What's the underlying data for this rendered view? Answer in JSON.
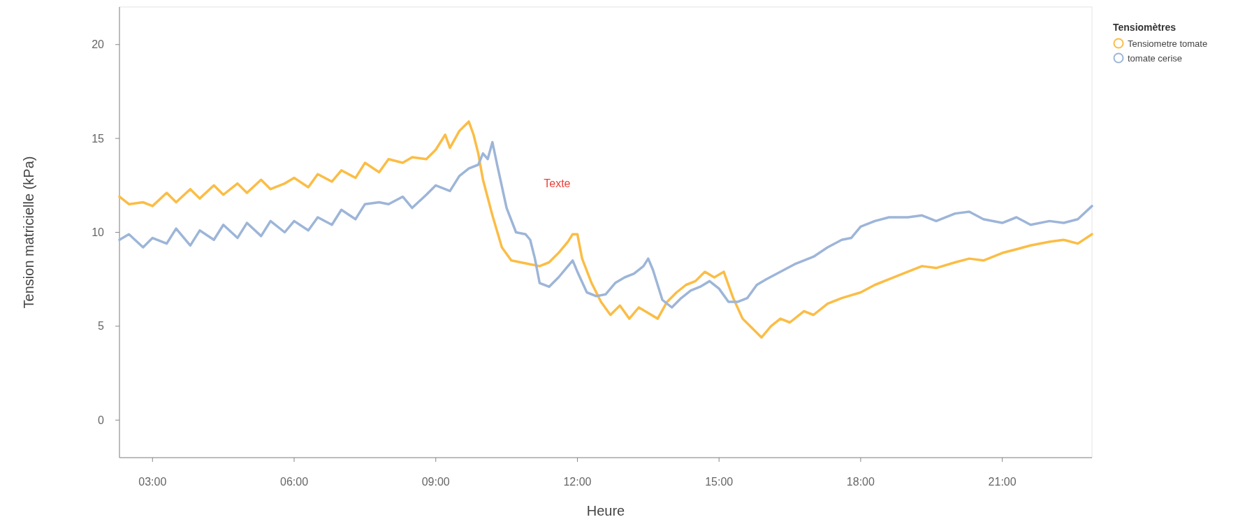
{
  "chart_data": {
    "type": "line",
    "xlabel": "Heure",
    "ylabel": "Tension matricielle (kPa)",
    "legend_title": "Tensiomètres",
    "legend": "top right",
    "marker": "none",
    "line_style": "solid",
    "grid": false,
    "xlim": [
      2.3,
      22.9
    ],
    "xticks": [
      {
        "value": 3,
        "label": "03:00"
      },
      {
        "value": 6,
        "label": "06:00"
      },
      {
        "value": 9,
        "label": "09:00"
      },
      {
        "value": 12,
        "label": "12:00"
      },
      {
        "value": 15,
        "label": "15:00"
      },
      {
        "value": 18,
        "label": "18:00"
      },
      {
        "value": 21,
        "label": "21:00"
      }
    ],
    "ylim": [
      -2,
      22
    ],
    "yticks": [
      0,
      5,
      10,
      15,
      20
    ],
    "annotations": [
      "Texte"
    ],
    "series": [
      {
        "name": "Tensiometre tomate",
        "color": "#fbbd45",
        "x": [
          2.3,
          2.5,
          2.8,
          3.0,
          3.3,
          3.5,
          3.8,
          4.0,
          4.3,
          4.5,
          4.8,
          5.0,
          5.3,
          5.5,
          5.8,
          6.0,
          6.3,
          6.5,
          6.8,
          7.0,
          7.3,
          7.5,
          7.8,
          8.0,
          8.3,
          8.5,
          8.8,
          9.0,
          9.2,
          9.3,
          9.5,
          9.7,
          9.8,
          9.9,
          10.0,
          10.2,
          10.4,
          10.6,
          10.8,
          11.0,
          11.2,
          11.4,
          11.6,
          11.8,
          11.9,
          12.0,
          12.1,
          12.3,
          12.5,
          12.7,
          12.9,
          13.1,
          13.3,
          13.5,
          13.7,
          13.9,
          14.1,
          14.3,
          14.5,
          14.7,
          14.9,
          15.1,
          15.3,
          15.5,
          15.7,
          15.9,
          16.1,
          16.3,
          16.5,
          16.8,
          17.0,
          17.3,
          17.6,
          18.0,
          18.3,
          18.6,
          19.0,
          19.3,
          19.6,
          20.0,
          20.3,
          20.6,
          21.0,
          21.3,
          21.6,
          22.0,
          22.3,
          22.6,
          22.9
        ],
        "values": [
          11.9,
          11.5,
          11.6,
          11.4,
          12.1,
          11.6,
          12.3,
          11.8,
          12.5,
          12.0,
          12.6,
          12.1,
          12.8,
          12.3,
          12.6,
          12.9,
          12.4,
          13.1,
          12.7,
          13.3,
          12.9,
          13.7,
          13.2,
          13.9,
          13.7,
          14.0,
          13.9,
          14.4,
          15.2,
          14.5,
          15.4,
          15.9,
          15.2,
          14.2,
          12.8,
          10.9,
          9.2,
          8.5,
          8.4,
          8.3,
          8.2,
          8.4,
          8.9,
          9.5,
          9.9,
          9.9,
          8.6,
          7.3,
          6.3,
          5.6,
          6.1,
          5.4,
          6.0,
          5.7,
          5.4,
          6.3,
          6.8,
          7.2,
          7.4,
          7.9,
          7.6,
          7.9,
          6.5,
          5.4,
          4.9,
          4.4,
          5.0,
          5.4,
          5.2,
          5.8,
          5.6,
          6.2,
          6.5,
          6.8,
          7.2,
          7.5,
          7.9,
          8.2,
          8.1,
          8.4,
          8.6,
          8.5,
          8.9,
          9.1,
          9.3,
          9.5,
          9.6,
          9.4,
          9.9
        ]
      },
      {
        "name": "tomate cerise",
        "color": "#9db5d8",
        "x": [
          2.3,
          2.5,
          2.8,
          3.0,
          3.3,
          3.5,
          3.8,
          4.0,
          4.3,
          4.5,
          4.8,
          5.0,
          5.3,
          5.5,
          5.8,
          6.0,
          6.3,
          6.5,
          6.8,
          7.0,
          7.3,
          7.5,
          7.8,
          8.0,
          8.3,
          8.5,
          8.8,
          9.0,
          9.3,
          9.5,
          9.7,
          9.9,
          10.0,
          10.1,
          10.2,
          10.3,
          10.5,
          10.7,
          10.9,
          11.0,
          11.1,
          11.2,
          11.4,
          11.6,
          11.8,
          11.9,
          12.0,
          12.2,
          12.4,
          12.6,
          12.8,
          13.0,
          13.2,
          13.4,
          13.5,
          13.6,
          13.8,
          14.0,
          14.2,
          14.4,
          14.6,
          14.8,
          15.0,
          15.2,
          15.4,
          15.6,
          15.8,
          16.0,
          16.3,
          16.6,
          17.0,
          17.3,
          17.6,
          17.8,
          18.0,
          18.3,
          18.6,
          19.0,
          19.3,
          19.6,
          20.0,
          20.3,
          20.6,
          21.0,
          21.3,
          21.6,
          22.0,
          22.3,
          22.6,
          22.9
        ],
        "values": [
          9.6,
          9.9,
          9.2,
          9.7,
          9.4,
          10.2,
          9.3,
          10.1,
          9.6,
          10.4,
          9.7,
          10.5,
          9.8,
          10.6,
          10.0,
          10.6,
          10.1,
          10.8,
          10.4,
          11.2,
          10.7,
          11.5,
          11.6,
          11.5,
          11.9,
          11.3,
          12.0,
          12.5,
          12.2,
          13.0,
          13.4,
          13.6,
          14.2,
          13.9,
          14.8,
          13.6,
          11.3,
          10.0,
          9.9,
          9.6,
          8.6,
          7.3,
          7.1,
          7.6,
          8.2,
          8.5,
          7.9,
          6.8,
          6.6,
          6.7,
          7.3,
          7.6,
          7.8,
          8.2,
          8.6,
          8.0,
          6.4,
          6.0,
          6.5,
          6.9,
          7.1,
          7.4,
          7.0,
          6.3,
          6.3,
          6.5,
          7.2,
          7.5,
          7.9,
          8.3,
          8.7,
          9.2,
          9.6,
          9.7,
          10.3,
          10.6,
          10.8,
          10.8,
          10.9,
          10.6,
          11.0,
          11.1,
          10.7,
          10.5,
          10.8,
          10.4,
          10.6,
          10.5,
          10.7,
          11.4
        ]
      }
    ]
  }
}
